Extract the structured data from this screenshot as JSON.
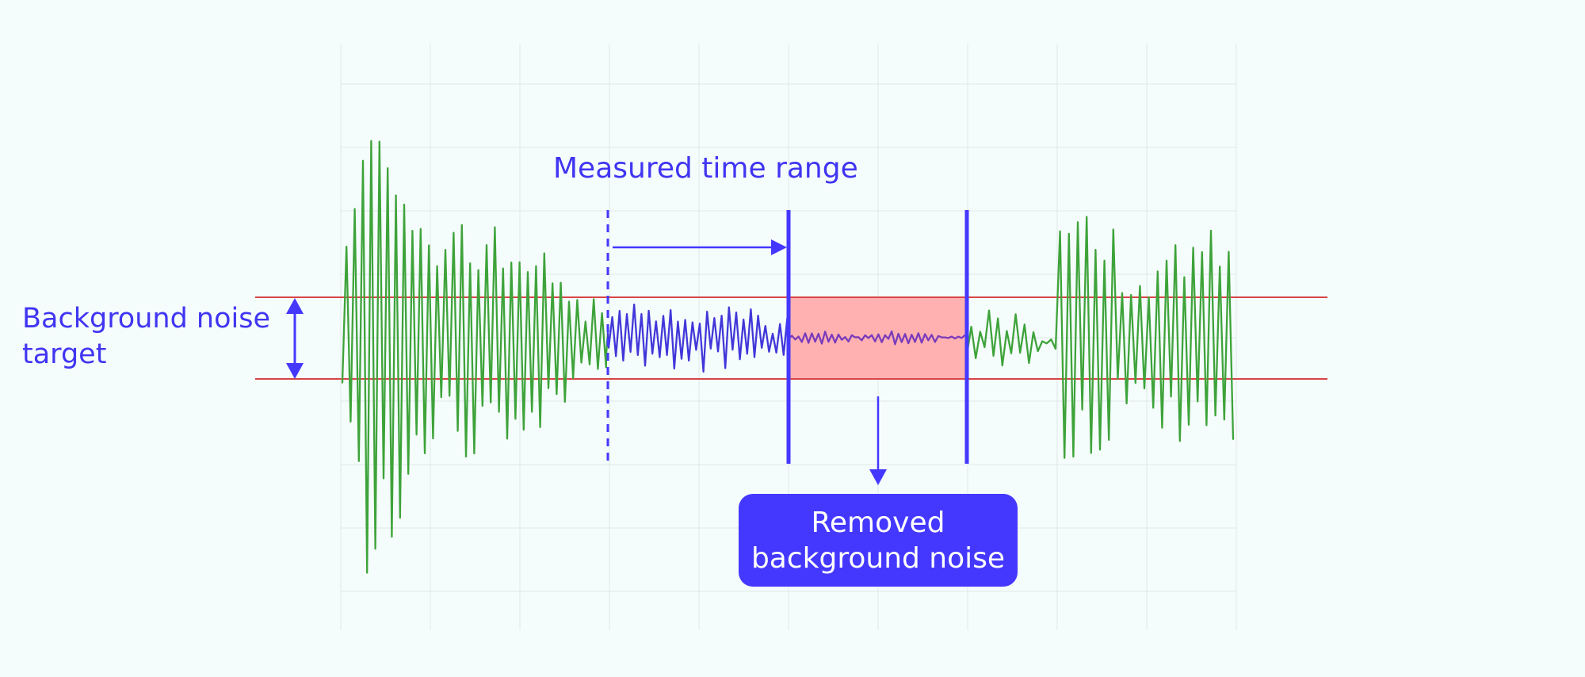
{
  "labels": {
    "measured_range": "Measured time range",
    "background_target_line1": "Background noise",
    "background_target_line2": "target",
    "removed_line1": "Removed",
    "removed_line2": "background noise"
  },
  "colors": {
    "background": "#f5fcfc",
    "grid": "#e1e7e7",
    "signal": "#3ea33a",
    "measured_signal": "#4137d9",
    "accent": "#4438ff",
    "threshold": "#d84545",
    "removed_fill": "#ffb1b2",
    "removed_signal": "#7a3bbb"
  },
  "icons": {
    "range_arrow": "right-arrow-icon",
    "target_arrow": "vertical-double-arrow-icon",
    "removed_arrow": "down-arrow-icon"
  }
}
